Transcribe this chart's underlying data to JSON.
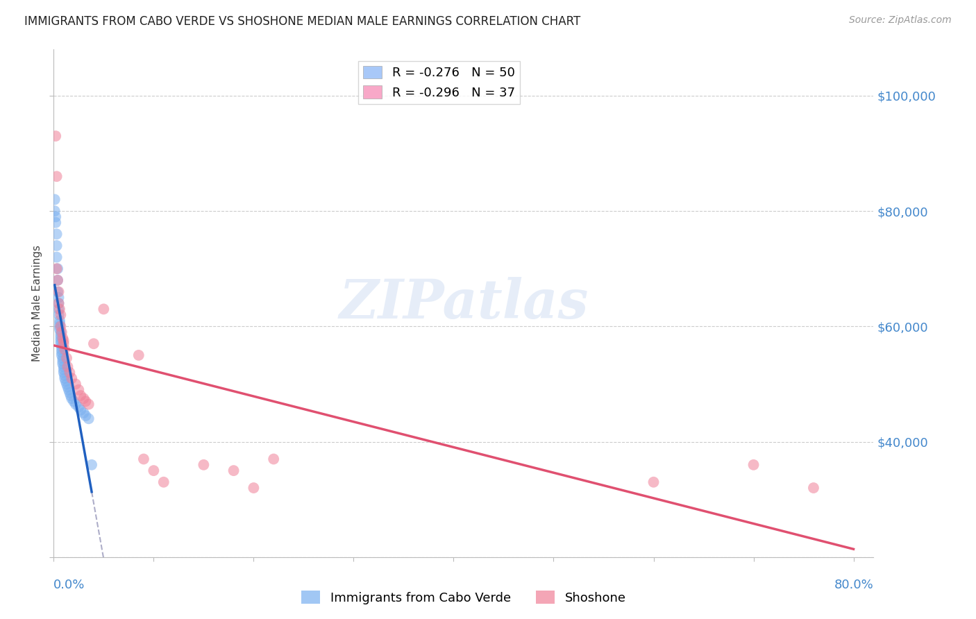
{
  "title": "IMMIGRANTS FROM CABO VERDE VS SHOSHONE MEDIAN MALE EARNINGS CORRELATION CHART",
  "source": "Source: ZipAtlas.com",
  "ylabel": "Median Male Earnings",
  "cabo_verde_color": "#7ab0f0",
  "shoshone_color": "#f08098",
  "legend_color1": "#a8c8f8",
  "legend_color2": "#f8a8c8",
  "legend_label1": "R = -0.276   N = 50",
  "legend_label2": "R = -0.296   N = 37",
  "watermark": "ZIPatlas",
  "cabo_verde_x": [
    0.001,
    0.001,
    0.002,
    0.002,
    0.003,
    0.003,
    0.003,
    0.004,
    0.004,
    0.004,
    0.005,
    0.005,
    0.005,
    0.005,
    0.006,
    0.006,
    0.006,
    0.006,
    0.007,
    0.007,
    0.007,
    0.007,
    0.007,
    0.008,
    0.008,
    0.008,
    0.008,
    0.009,
    0.009,
    0.009,
    0.01,
    0.01,
    0.01,
    0.011,
    0.011,
    0.012,
    0.013,
    0.014,
    0.015,
    0.016,
    0.017,
    0.018,
    0.02,
    0.022,
    0.025,
    0.027,
    0.03,
    0.032,
    0.035,
    0.038
  ],
  "cabo_verde_y": [
    82000,
    80000,
    79000,
    78000,
    76000,
    74000,
    72000,
    70000,
    68000,
    66000,
    65000,
    64000,
    63000,
    62000,
    61000,
    60500,
    60000,
    59500,
    59000,
    58500,
    58000,
    57500,
    57000,
    56500,
    56000,
    55500,
    55000,
    54500,
    54000,
    53500,
    53000,
    52500,
    52000,
    51500,
    51000,
    50500,
    50000,
    49500,
    49000,
    48500,
    48000,
    47500,
    47000,
    46500,
    46000,
    45500,
    45000,
    44500,
    44000,
    36000
  ],
  "shoshone_x": [
    0.002,
    0.003,
    0.003,
    0.004,
    0.005,
    0.005,
    0.006,
    0.007,
    0.007,
    0.008,
    0.009,
    0.01,
    0.01,
    0.011,
    0.013,
    0.014,
    0.016,
    0.018,
    0.022,
    0.025,
    0.027,
    0.03,
    0.032,
    0.035,
    0.04,
    0.05,
    0.085,
    0.09,
    0.1,
    0.11,
    0.15,
    0.18,
    0.2,
    0.22,
    0.6,
    0.7,
    0.76
  ],
  "shoshone_y": [
    93000,
    86000,
    70000,
    68000,
    66000,
    64000,
    63000,
    62000,
    60000,
    59000,
    58000,
    57500,
    57000,
    56000,
    54500,
    53000,
    52000,
    51000,
    50000,
    49000,
    48000,
    47500,
    47000,
    46500,
    57000,
    63000,
    55000,
    37000,
    35000,
    33000,
    36000,
    35000,
    32000,
    37000,
    33000,
    36000,
    32000
  ],
  "ylim_min": 20000,
  "ylim_max": 108000,
  "xlim_min": 0.0,
  "xlim_max": 0.82,
  "yticks": [
    20000,
    40000,
    60000,
    80000,
    100000
  ],
  "right_yticklabels": [
    "",
    "$40,000",
    "$60,000",
    "$80,000",
    "$100,000"
  ],
  "grid_color": "#cccccc",
  "cv_line_color": "#2060c0",
  "sh_line_color": "#e05070",
  "dash_line_color": "#9999bb"
}
